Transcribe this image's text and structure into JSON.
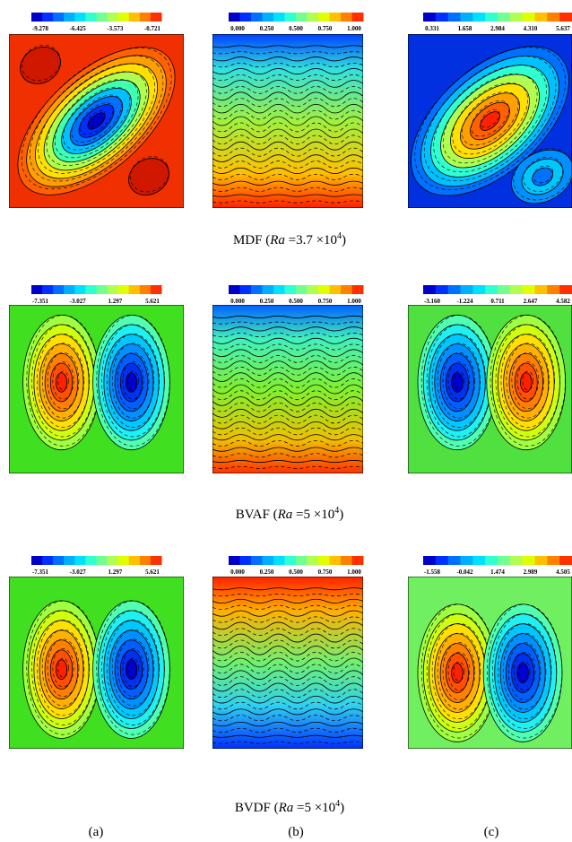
{
  "figure": {
    "rows": [
      {
        "caption": {
          "name": "MDF (",
          "var": "Ra",
          "eq": " =3.7 ×10",
          "exp": "4",
          "close": ")"
        },
        "panels": [
          {
            "ticks": [
              "-9.278",
              "-6.425",
              "-3.573",
              "-0.721"
            ]
          },
          {
            "ticks": [
              "0.000",
              "0.250",
              "0.500",
              "0.750",
              "1.000"
            ]
          },
          {
            "ticks": [
              "0.331",
              "1.658",
              "2.984",
              "4.310",
              "5.637"
            ]
          }
        ]
      },
      {
        "caption": {
          "name": "BVAF (",
          "var": "Ra",
          "eq": " =5 ×10",
          "exp": "4",
          "close": ")"
        },
        "panels": [
          {
            "ticks": [
              "-7.351",
              "-3.027",
              "1.297",
              "5.621"
            ]
          },
          {
            "ticks": [
              "0.000",
              "0.250",
              "0.500",
              "0.750",
              "1.000"
            ]
          },
          {
            "ticks": [
              "-3.160",
              "-1.224",
              "0.711",
              "2.647",
              "4.582"
            ]
          }
        ]
      },
      {
        "caption": {
          "name": "BVDF (",
          "var": "Ra",
          "eq": " =5 ×10",
          "exp": "4",
          "close": ")"
        },
        "panels": [
          {
            "ticks": [
              "-7.351",
              "-3.027",
              "1.297",
              "5.621"
            ]
          },
          {
            "ticks": [
              "0.000",
              "0.250",
              "0.500",
              "0.750",
              "1.000"
            ]
          },
          {
            "ticks": [
              "-1.558",
              "-0.042",
              "1.474",
              "2.989",
              "4.505"
            ]
          }
        ]
      }
    ],
    "labels": [
      "(a)",
      "(b)",
      "(c)"
    ]
  }
}
